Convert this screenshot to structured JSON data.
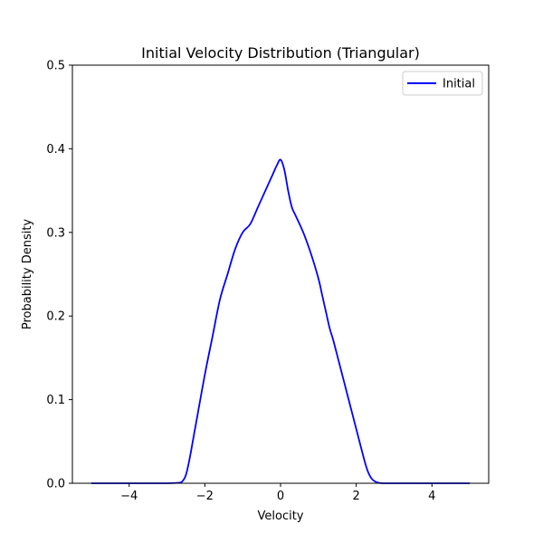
{
  "chart_data": {
    "type": "line",
    "title": "Initial Velocity Distribution (Triangular)",
    "xlabel": "Velocity",
    "ylabel": "Probability Density",
    "xlim": [
      -5.5,
      5.5
    ],
    "ylim": [
      0,
      0.5
    ],
    "xticks": [
      -4,
      -2,
      0,
      2,
      4
    ],
    "xtick_labels": [
      "−4",
      "−2",
      "0",
      "2",
      "4"
    ],
    "yticks": [
      0.0,
      0.1,
      0.2,
      0.3,
      0.4,
      0.5
    ],
    "ytick_labels": [
      "0.0",
      "0.1",
      "0.2",
      "0.3",
      "0.4",
      "0.5"
    ],
    "grid": false,
    "legend_position": "top-right",
    "series": [
      {
        "name": "Initial",
        "color": "#0000ff",
        "x": [
          -5.0,
          -4.0,
          -3.0,
          -2.7,
          -2.6,
          -2.5,
          -2.4,
          -2.3,
          -2.2,
          -2.0,
          -1.8,
          -1.6,
          -1.4,
          -1.2,
          -1.0,
          -0.8,
          -0.6,
          -0.4,
          -0.2,
          -0.1,
          0.0,
          0.1,
          0.2,
          0.3,
          0.4,
          0.6,
          0.8,
          1.0,
          1.1,
          1.2,
          1.3,
          1.4,
          1.6,
          1.8,
          2.0,
          2.2,
          2.3,
          2.4,
          2.5,
          2.6,
          2.7,
          3.0,
          4.0,
          5.0
        ],
        "y": [
          0.0,
          0.0,
          0.0,
          0.0005,
          0.002,
          0.01,
          0.03,
          0.055,
          0.08,
          0.13,
          0.175,
          0.22,
          0.25,
          0.28,
          0.3,
          0.31,
          0.33,
          0.35,
          0.37,
          0.38,
          0.387,
          0.375,
          0.35,
          0.33,
          0.32,
          0.3,
          0.275,
          0.245,
          0.225,
          0.205,
          0.185,
          0.17,
          0.135,
          0.1,
          0.065,
          0.03,
          0.015,
          0.006,
          0.002,
          0.0005,
          0.0,
          0.0,
          0.0,
          0.0
        ]
      }
    ]
  }
}
